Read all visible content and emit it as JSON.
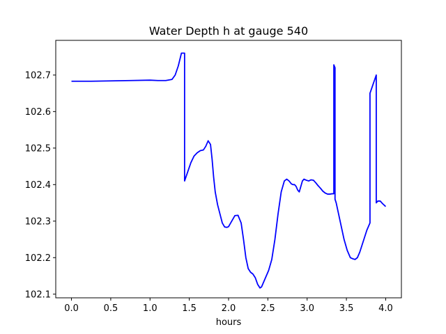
{
  "chart_data": {
    "type": "line",
    "title": "Water Depth h at gauge 540",
    "xlabel": "hours",
    "ylabel": "",
    "xlim": [
      -0.2,
      4.2
    ],
    "ylim": [
      102.09,
      102.795
    ],
    "grid": false,
    "legend": "none",
    "xticks": [
      0.0,
      0.5,
      1.0,
      1.5,
      2.0,
      2.5,
      3.0,
      3.5,
      4.0
    ],
    "xtick_labels": [
      "0.0",
      "0.5",
      "1.0",
      "1.5",
      "2.0",
      "2.5",
      "3.0",
      "3.5",
      "4.0"
    ],
    "yticks": [
      102.1,
      102.2,
      102.3,
      102.4,
      102.5,
      102.6,
      102.7
    ],
    "ytick_labels": [
      "102.1",
      "102.2",
      "102.3",
      "102.4",
      "102.5",
      "102.6",
      "102.7"
    ],
    "series": [
      {
        "color": "#0000ff",
        "x": [
          0.0,
          0.25,
          0.5,
          0.75,
          1.0,
          1.1,
          1.2,
          1.28,
          1.32,
          1.36,
          1.4,
          1.44,
          1.44,
          1.48,
          1.52,
          1.56,
          1.6,
          1.64,
          1.68,
          1.71,
          1.74,
          1.77,
          1.79,
          1.81,
          1.83,
          1.86,
          1.89,
          1.92,
          1.95,
          1.98,
          2.0,
          2.04,
          2.08,
          2.12,
          2.16,
          2.19,
          2.22,
          2.25,
          2.28,
          2.31,
          2.34,
          2.37,
          2.4,
          2.42,
          2.44,
          2.46,
          2.48,
          2.51,
          2.55,
          2.59,
          2.63,
          2.67,
          2.71,
          2.74,
          2.77,
          2.8,
          2.82,
          2.84,
          2.86,
          2.88,
          2.9,
          2.92,
          2.94,
          2.96,
          2.99,
          3.02,
          3.05,
          3.08,
          3.11,
          3.14,
          3.17,
          3.2,
          3.23,
          3.26,
          3.29,
          3.32,
          3.34,
          3.34,
          3.355,
          3.355,
          3.37,
          3.4,
          3.43,
          3.47,
          3.51,
          3.55,
          3.58,
          3.61,
          3.64,
          3.67,
          3.7,
          3.73,
          3.76,
          3.8,
          3.8,
          3.84,
          3.88,
          3.88,
          3.9,
          3.93,
          3.96,
          4.0
        ],
        "y": [
          102.683,
          102.683,
          102.684,
          102.685,
          102.686,
          102.685,
          102.685,
          102.688,
          102.7,
          102.725,
          102.76,
          102.76,
          102.41,
          102.435,
          102.46,
          102.478,
          102.487,
          102.493,
          102.495,
          102.505,
          102.52,
          102.51,
          102.47,
          102.42,
          102.38,
          102.345,
          102.32,
          102.295,
          102.284,
          102.283,
          102.285,
          102.3,
          102.315,
          102.316,
          102.295,
          102.25,
          102.2,
          102.17,
          102.16,
          102.155,
          102.145,
          102.127,
          102.117,
          102.12,
          102.13,
          102.14,
          102.15,
          102.165,
          102.195,
          102.25,
          102.32,
          102.38,
          102.41,
          102.415,
          102.41,
          102.402,
          102.4,
          102.4,
          102.395,
          102.385,
          102.38,
          102.395,
          102.41,
          102.415,
          102.412,
          102.41,
          102.413,
          102.412,
          102.405,
          102.397,
          102.39,
          102.382,
          102.377,
          102.374,
          102.374,
          102.375,
          102.375,
          102.728,
          102.72,
          102.36,
          102.35,
          102.32,
          102.29,
          102.25,
          102.22,
          102.2,
          102.197,
          102.195,
          102.2,
          102.215,
          102.235,
          102.255,
          102.275,
          102.295,
          102.65,
          102.675,
          102.7,
          102.35,
          102.355,
          102.355,
          102.348,
          102.34
        ]
      }
    ]
  }
}
